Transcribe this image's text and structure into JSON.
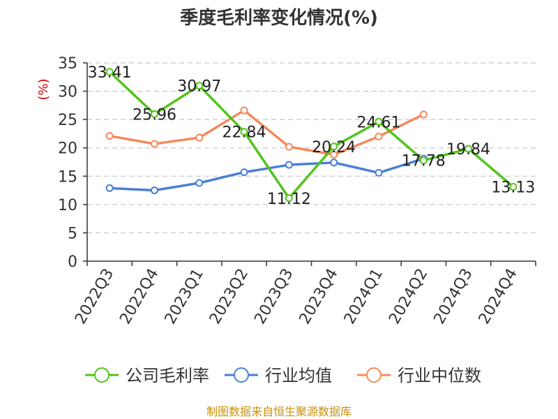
{
  "chart_data": {
    "type": "line",
    "title": "季度毛利率变化情况(%)",
    "ylabel": "(%)",
    "xlabel": "",
    "ylim": [
      0,
      35
    ],
    "yticks": [
      0,
      5,
      10,
      15,
      20,
      25,
      30,
      35
    ],
    "grid": true,
    "legend_position": "bottom",
    "categories": [
      "2022Q3",
      "2022Q4",
      "2023Q1",
      "2023Q2",
      "2023Q3",
      "2023Q4",
      "2024Q1",
      "2024Q2",
      "2024Q3",
      "2024Q4"
    ],
    "series": [
      {
        "name": "公司毛利率",
        "color": "#52c41a",
        "values": [
          33.41,
          25.96,
          30.97,
          22.84,
          11.12,
          20.24,
          24.61,
          17.78,
          19.84,
          13.13
        ],
        "labels": true
      },
      {
        "name": "行业均值",
        "color": "#4a7fd6",
        "values": [
          12.9,
          12.5,
          13.8,
          15.7,
          17.0,
          17.4,
          15.6,
          18.1,
          null,
          null
        ],
        "labels": false
      },
      {
        "name": "行业中位数",
        "color": "#f5895a",
        "values": [
          22.1,
          20.7,
          21.8,
          26.6,
          20.2,
          18.8,
          22.0,
          25.9,
          null,
          null
        ],
        "labels": false
      }
    ]
  },
  "footer": {
    "source": "制图数据来自恒生聚源数据库"
  }
}
